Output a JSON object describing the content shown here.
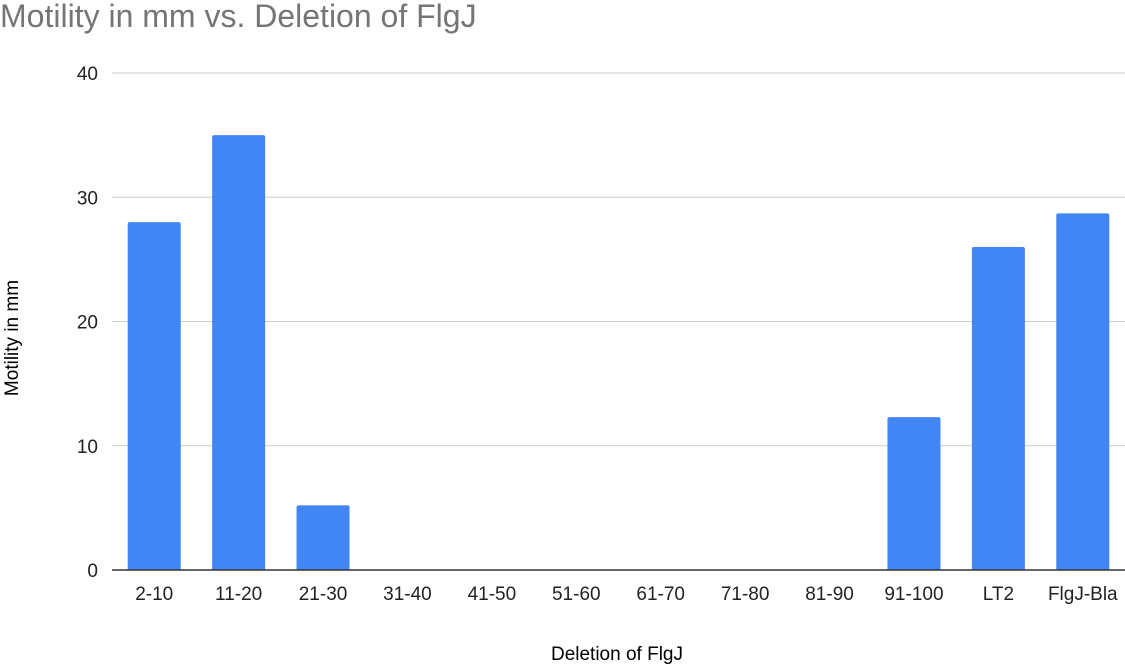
{
  "chart_data": {
    "type": "bar",
    "title": "Motility in mm vs. Deletion of FlgJ",
    "xlabel": "Deletion of FlgJ",
    "ylabel": "Motility in mm",
    "categories": [
      "2-10",
      "11-20",
      "21-30",
      "31-40",
      "41-50",
      "51-60",
      "61-70",
      "71-80",
      "81-90",
      "91-100",
      "LT2",
      "FlgJ-Bla"
    ],
    "values": [
      28,
      35,
      5.2,
      0,
      0,
      0,
      0,
      0,
      0,
      12.3,
      26,
      28.7
    ],
    "ylim": [
      0,
      40
    ],
    "yticks": [
      0,
      10,
      20,
      30,
      40
    ],
    "grid": true,
    "legend": "none",
    "colors": {
      "bar": "#4285f4",
      "gridline": "#cccccc",
      "baseline": "#333333",
      "title": "#757575"
    }
  }
}
